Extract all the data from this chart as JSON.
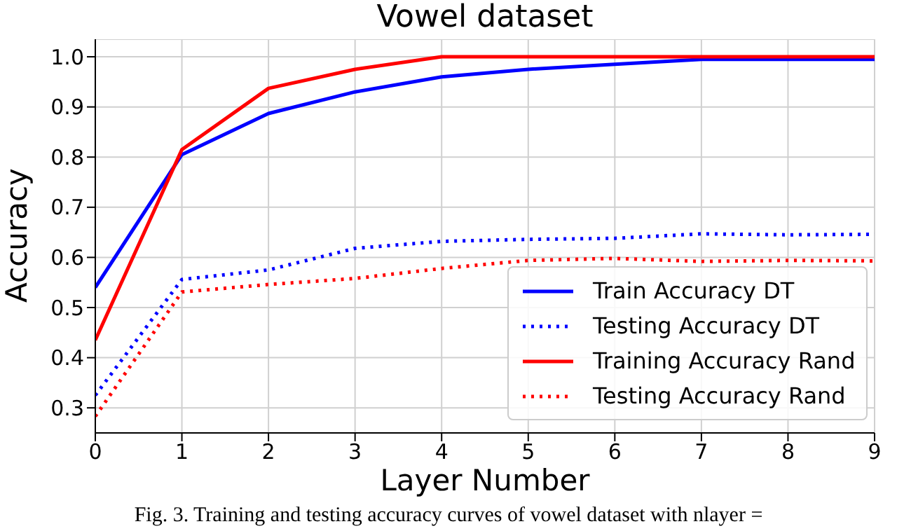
{
  "chart_data": {
    "type": "line",
    "title": "Vowel dataset",
    "xlabel": "Layer Number",
    "ylabel": "Accuracy",
    "x": [
      0,
      1,
      2,
      3,
      4,
      5,
      6,
      7,
      8,
      9
    ],
    "series": [
      {
        "name": "Train Accuracy DT",
        "color": "#0000ff",
        "line_style": "solid",
        "values": [
          0.54,
          0.805,
          0.887,
          0.93,
          0.96,
          0.975,
          0.985,
          0.995,
          0.995,
          0.995
        ]
      },
      {
        "name": "Testing Accuracy DT",
        "color": "#0000ff",
        "line_style": "dotted",
        "values": [
          0.325,
          0.556,
          0.575,
          0.618,
          0.632,
          0.636,
          0.638,
          0.647,
          0.645,
          0.646
        ]
      },
      {
        "name": "Training Accuracy Rand",
        "color": "#ff0000",
        "line_style": "solid",
        "values": [
          0.435,
          0.815,
          0.937,
          0.975,
          1.0,
          1.0,
          1.0,
          1.0,
          1.0,
          1.0
        ]
      },
      {
        "name": "Testing Accuracy Rand",
        "color": "#ff0000",
        "line_style": "dotted",
        "values": [
          0.283,
          0.531,
          0.546,
          0.558,
          0.578,
          0.594,
          0.598,
          0.592,
          0.594,
          0.593
        ]
      }
    ],
    "xlim": [
      0,
      9
    ],
    "xticks": [
      0,
      1,
      2,
      3,
      4,
      5,
      6,
      7,
      8,
      9
    ],
    "ylim": [
      0.25,
      1.035
    ],
    "yticks": [
      {
        "value": 0.3,
        "label": "0.3"
      },
      {
        "value": 0.4,
        "label": "0.4"
      },
      {
        "value": 0.5,
        "label": "0.5"
      },
      {
        "value": 0.6,
        "label": "0.6"
      },
      {
        "value": 0.7,
        "label": "0.7"
      },
      {
        "value": 0.8,
        "label": "0.8"
      },
      {
        "value": 0.9,
        "label": "0.9"
      },
      {
        "value": 1.0,
        "label": "1.0"
      }
    ],
    "grid": true,
    "legend": "bottom right",
    "marker": "none",
    "annotations": [
      "Fig. 3. Training and testing accuracy curves of vowel dataset with nlayer ="
    ]
  }
}
